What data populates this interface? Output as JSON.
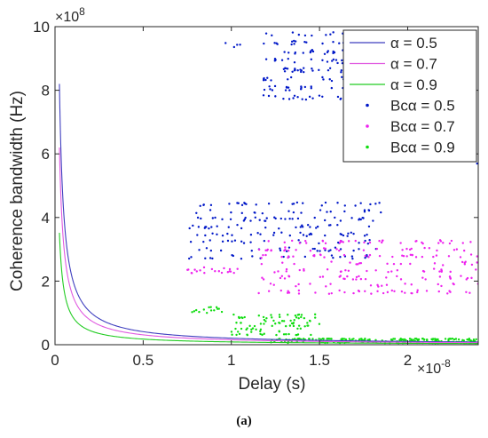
{
  "caption": "(a)",
  "chart_data": {
    "type": "line",
    "xlabel": "Delay (s)",
    "ylabel": "Coherence bandwidth (Hz)",
    "x_multiplier": "×10",
    "x_exponent": "-8",
    "y_multiplier": "×10",
    "y_exponent": "8",
    "xlim": [
      0,
      2.4
    ],
    "ylim": [
      0,
      10
    ],
    "x_ticks": [
      0,
      0.5,
      1,
      1.5,
      2
    ],
    "x_tick_labels": [
      "0",
      "0.5",
      "1",
      "1.5",
      "2"
    ],
    "y_ticks": [
      0,
      2,
      4,
      6,
      8,
      10
    ],
    "y_tick_labels": [
      "0",
      "2",
      "4",
      "6",
      "8",
      "10"
    ],
    "grid": false,
    "legend_position": "top-right",
    "series": [
      {
        "name": "α = 0.5",
        "kind": "line",
        "color": "#3f3fbf",
        "k": 0.205
      },
      {
        "name": "α = 0.7",
        "kind": "line",
        "color": "#e05ae0",
        "k": 0.155
      },
      {
        "name": "α = 0.9",
        "kind": "line",
        "color": "#22cc22",
        "k": 0.088
      },
      {
        "name": "Bcα = 0.5",
        "kind": "scatter",
        "color": "#0018c8",
        "clusters": [
          {
            "x": [
              0.95,
              1.05
            ],
            "y": [
              9.3,
              9.5
            ],
            "n": 4
          },
          {
            "x": [
              1.18,
              1.75
            ],
            "y": [
              7.7,
              10.0
            ],
            "n": 170
          },
          {
            "x": [
              2.36,
              2.4
            ],
            "y": [
              5.6,
              6.3
            ],
            "n": 5
          },
          {
            "x": [
              0.76,
              1.85
            ],
            "y": [
              2.7,
              4.6
            ],
            "n": 200
          }
        ]
      },
      {
        "name": "Bcα = 0.7",
        "kind": "scatter",
        "color": "#ee22ee",
        "clusters": [
          {
            "x": [
              0.75,
              1.05
            ],
            "y": [
              2.25,
              2.45
            ],
            "n": 20
          },
          {
            "x": [
              1.15,
              2.4
            ],
            "y": [
              1.6,
              3.4
            ],
            "n": 230
          }
        ]
      },
      {
        "name": "Bcα = 0.9",
        "kind": "scatter",
        "color": "#11dd11",
        "clusters": [
          {
            "x": [
              0.77,
              0.95
            ],
            "y": [
              1.0,
              1.2
            ],
            "n": 14
          },
          {
            "x": [
              1.0,
              1.5
            ],
            "y": [
              0.3,
              1.0
            ],
            "n": 90
          },
          {
            "x": [
              1.22,
              2.4
            ],
            "y": [
              0.05,
              0.2
            ],
            "n": 220
          }
        ]
      }
    ]
  }
}
